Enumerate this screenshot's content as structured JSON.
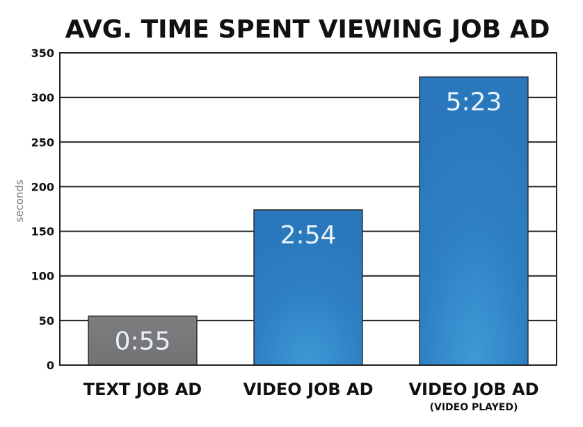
{
  "chart_data": {
    "type": "bar",
    "title": "AVG. TIME SPENT VIEWING JOB AD",
    "xlabel": "",
    "ylabel": "seconds",
    "ylim": [
      0,
      350
    ],
    "yticks": [
      0,
      50,
      100,
      150,
      200,
      250,
      300,
      350
    ],
    "grid": true,
    "legend": "none",
    "categories": [
      "TEXT JOB AD",
      "VIDEO JOB AD",
      "VIDEO JOB AD"
    ],
    "category_sublabels": [
      "",
      "",
      "(VIDEO PLAYED)"
    ],
    "values": [
      55,
      174,
      323
    ],
    "data_labels": [
      "0:55",
      "2:54",
      "5:23"
    ],
    "bar_colors": [
      "#7b7b7d",
      "#2d7ec0",
      "#2d7ec0"
    ]
  }
}
